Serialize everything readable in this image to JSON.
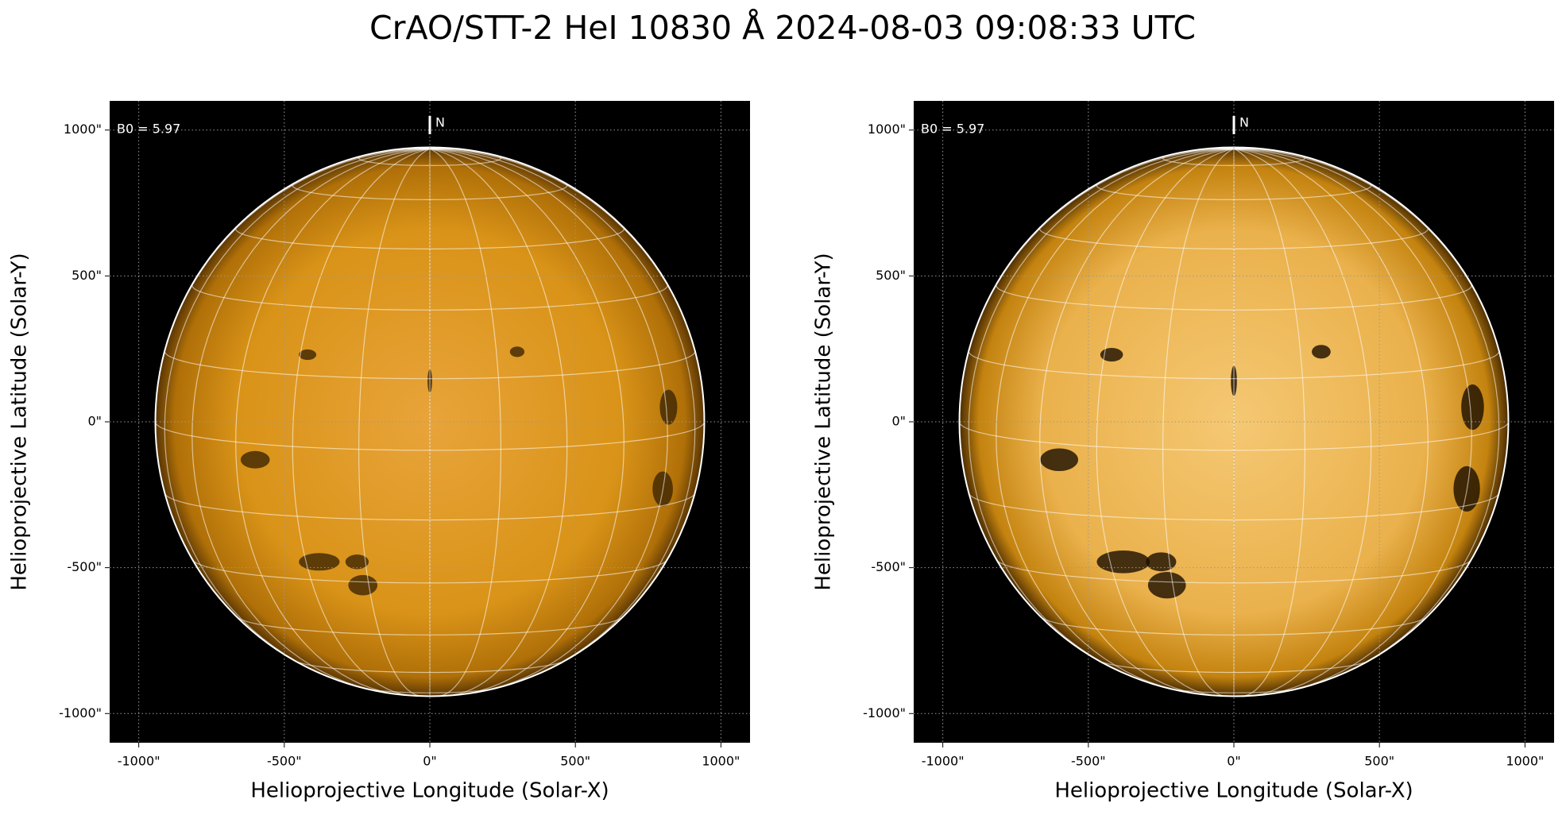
{
  "title": "CrAO/STT-2 HeI 10830 Å 2024-08-03 09:08:33 UTC",
  "chart_data": [
    {
      "type": "image",
      "xlabel": "Helioprojective Longitude (Solar-X)",
      "ylabel": "Helioprojective Latitude (Solar-Y)",
      "annotation": "B0 = 5.97",
      "north_label": "N",
      "disk_radius": 943,
      "xlim": [
        -1100,
        1100
      ],
      "ylim": [
        -1100,
        1100
      ],
      "grid": true,
      "xticks": [
        {
          "value": -1000,
          "label": "-1000\""
        },
        {
          "value": -500,
          "label": "-500\""
        },
        {
          "value": 0,
          "label": "0\""
        },
        {
          "value": 500,
          "label": "500\""
        },
        {
          "value": 1000,
          "label": "1000\""
        }
      ],
      "yticks": [
        {
          "value": -1000,
          "label": "-1000\""
        },
        {
          "value": -500,
          "label": "-500\""
        },
        {
          "value": 0,
          "label": "0\""
        },
        {
          "value": 500,
          "label": "500\""
        },
        {
          "value": 1000,
          "label": "1000\""
        }
      ]
    },
    {
      "type": "image",
      "xlabel": "Helioprojective Longitude (Solar-X)",
      "ylabel": "Helioprojective Latitude (Solar-Y)",
      "annotation": "B0 = 5.97",
      "north_label": "N",
      "disk_radius": 943,
      "xlim": [
        -1100,
        1100
      ],
      "ylim": [
        -1100,
        1100
      ],
      "grid": true,
      "xticks": [
        {
          "value": -1000,
          "label": "-1000\""
        },
        {
          "value": -500,
          "label": "-500\""
        },
        {
          "value": 0,
          "label": "0\""
        },
        {
          "value": 500,
          "label": "500\""
        },
        {
          "value": 1000,
          "label": "1000\""
        }
      ],
      "yticks": [
        {
          "value": -1000,
          "label": "-1000\""
        },
        {
          "value": -500,
          "label": "-500\""
        },
        {
          "value": 0,
          "label": "0\""
        },
        {
          "value": 500,
          "label": "500\""
        },
        {
          "value": 1000,
          "label": "1000\""
        }
      ]
    }
  ]
}
